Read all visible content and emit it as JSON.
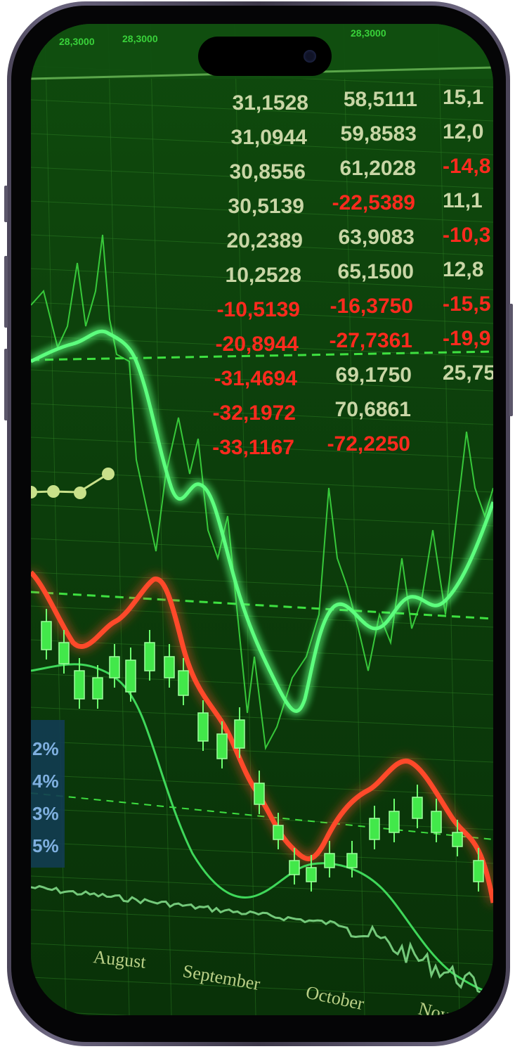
{
  "colors": {
    "background": "#0b3a0a",
    "grid": "#2b7a22",
    "neon_green": "#45ff6a",
    "neon_red": "#ff3a22",
    "positive_text": "#c9d6a6",
    "negative_text": "#ff2a1e"
  },
  "header_cells": [
    "28,3000",
    "28,3000",
    "28,3000"
  ],
  "table_rows": [
    {
      "c1": "31,1528",
      "c1_neg": false,
      "c2": "58,5111",
      "c2_neg": false,
      "c3": "15,1",
      "c3_neg": false
    },
    {
      "c1": "31,0944",
      "c1_neg": false,
      "c2": "59,8583",
      "c2_neg": false,
      "c3": "12,0",
      "c3_neg": false
    },
    {
      "c1": "30,8556",
      "c1_neg": false,
      "c2": "61,2028",
      "c2_neg": false,
      "c3": "-14,8",
      "c3_neg": true
    },
    {
      "c1": "30,5139",
      "c1_neg": false,
      "c2": "-22,5389",
      "c2_neg": true,
      "c3": "11,1",
      "c3_neg": false
    },
    {
      "c1": "20,2389",
      "c1_neg": false,
      "c2": "63,9083",
      "c2_neg": false,
      "c3": "-10,3",
      "c3_neg": true
    },
    {
      "c1": "10,2528",
      "c1_neg": false,
      "c2": "65,1500",
      "c2_neg": false,
      "c3": "12,8",
      "c3_neg": false
    },
    {
      "c1": "-10,5139",
      "c1_neg": true,
      "c2": "-16,3750",
      "c2_neg": true,
      "c3": "-15,5",
      "c3_neg": true
    },
    {
      "c1": "-20,8944",
      "c1_neg": true,
      "c2": "-27,7361",
      "c2_neg": true,
      "c3": "-19,9",
      "c3_neg": true
    },
    {
      "c1": "-31,4694",
      "c1_neg": true,
      "c2": "69,1750",
      "c2_neg": false,
      "c3": "25,75",
      "c3_neg": false
    },
    {
      "c1": "-32,1972",
      "c1_neg": true,
      "c2": "70,6861",
      "c2_neg": false,
      "c3": "",
      "c3_neg": false
    },
    {
      "c1": "-33,1167",
      "c1_neg": true,
      "c2": "-72,2250",
      "c2_neg": true,
      "c3": "",
      "c3_neg": false
    }
  ],
  "percent_labels": [
    "2%",
    "4%",
    "3%",
    "5%"
  ],
  "months": [
    "August",
    "September",
    "October",
    "Nov"
  ]
}
